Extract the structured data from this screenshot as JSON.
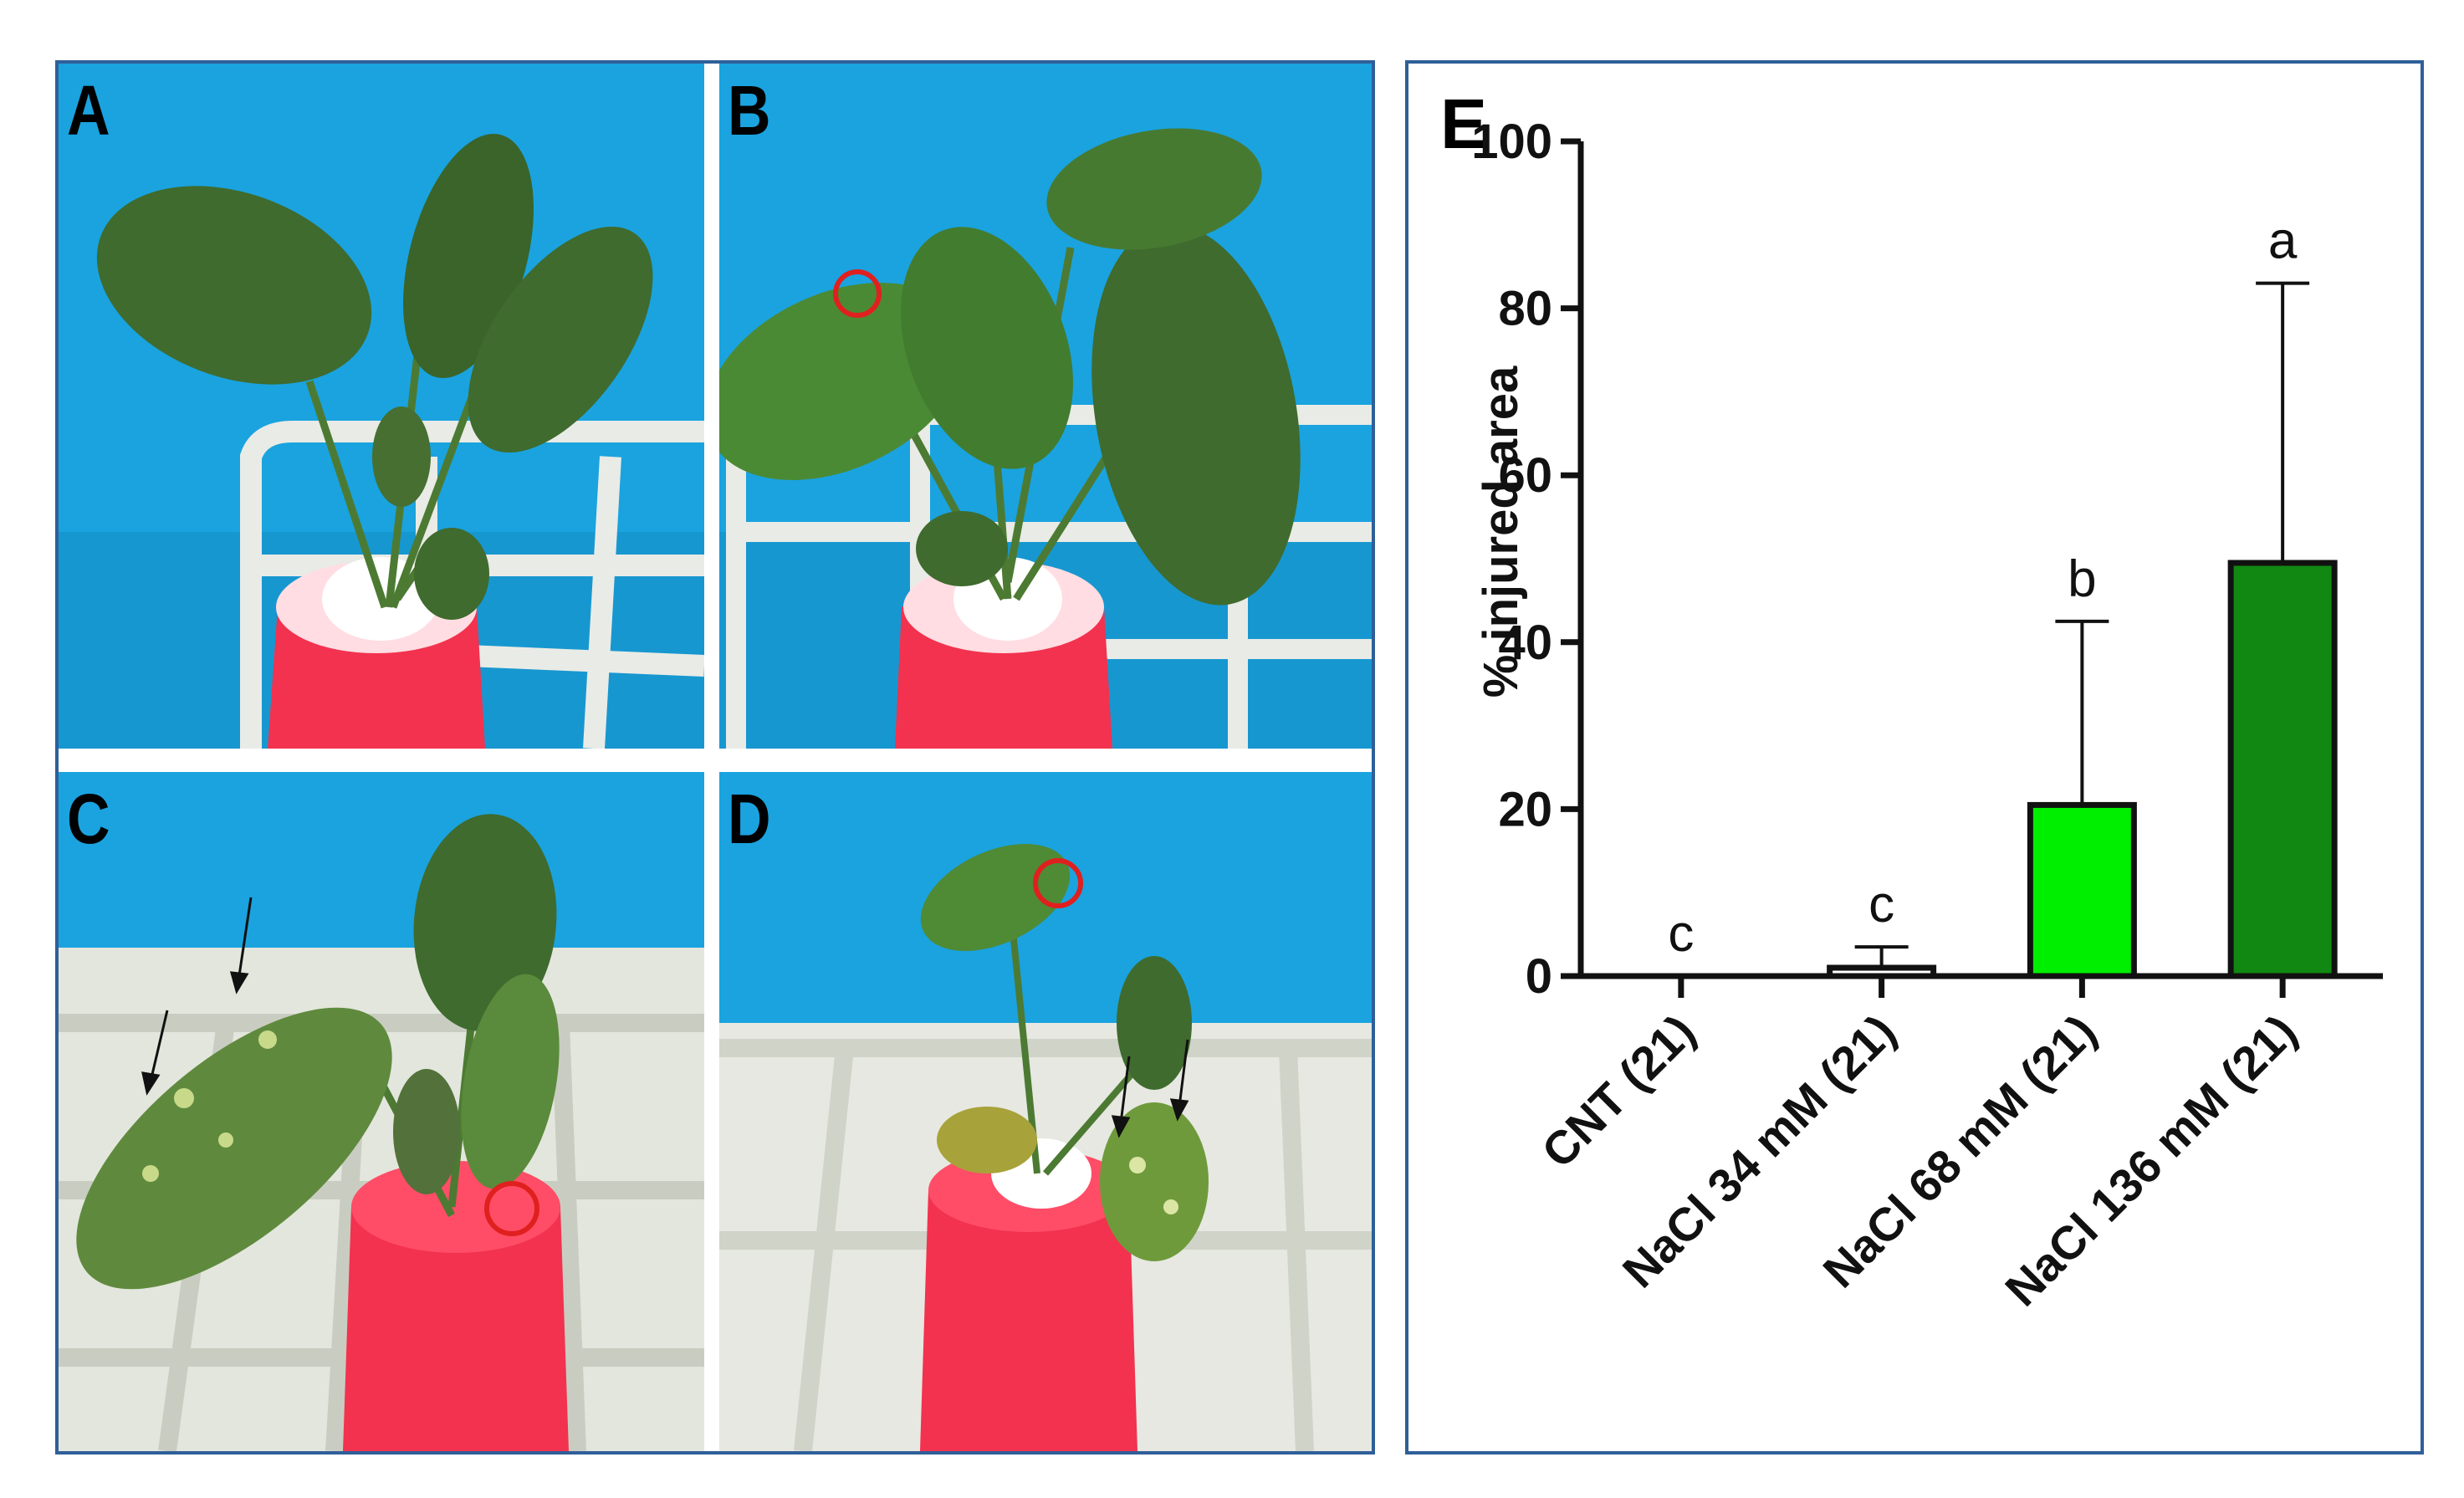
{
  "panels": {
    "a": {
      "letter": "A"
    },
    "b": {
      "letter": "B"
    },
    "c": {
      "letter": "C"
    },
    "d": {
      "letter": "D"
    },
    "e": {
      "letter": "E"
    }
  },
  "colors": {
    "background_blue": "#1aa3df",
    "leaf_green": "#3f6b2e",
    "cap_red": "#f2324f",
    "rack_white": "#e9ebe6",
    "frame_blue": "#2f5f99",
    "marker_red": "#e0201e"
  },
  "chart_data": {
    "type": "bar",
    "categories": [
      "CNT (21)",
      "NaCl 34 mM (21)",
      "NaCl 68 mM (21)",
      "NaCl 136 mM (21)"
    ],
    "values": [
      0,
      1,
      20.5,
      49.5
    ],
    "error_upper": [
      0,
      3.5,
      42.5,
      83
    ],
    "significance": [
      "c",
      "c",
      "b",
      "a"
    ],
    "bar_colors": [
      "#ffffff",
      "#ffffff",
      "#00ee00",
      "#118811"
    ],
    "ylabel": "% injured area",
    "ylim": [
      0,
      100
    ],
    "yticks": [
      0,
      20,
      40,
      60,
      80,
      100
    ],
    "grid": false
  }
}
